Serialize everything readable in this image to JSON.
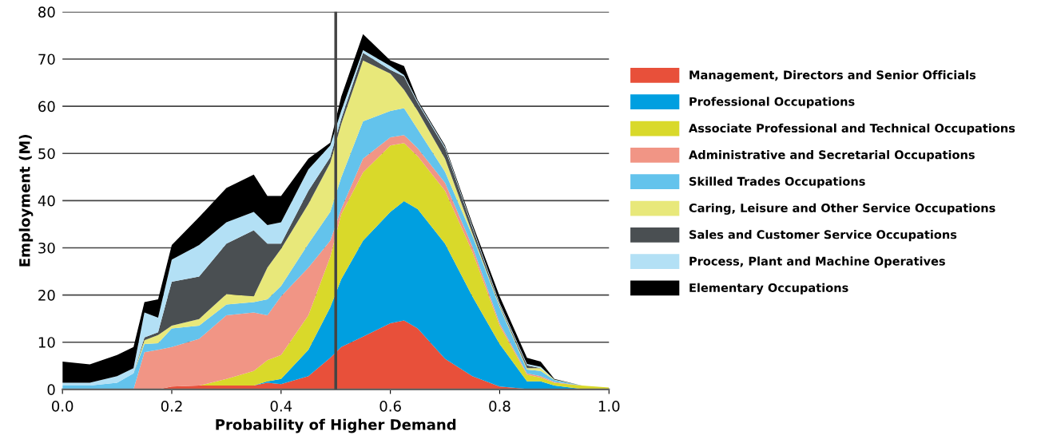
{
  "chart_data": {
    "type": "area",
    "stacked": true,
    "xlabel": "Probability of Higher Demand",
    "ylabel": "Employment (M)",
    "x": [
      0,
      0.05,
      0.1,
      0.13,
      0.15,
      0.175,
      0.2,
      0.25,
      0.3,
      0.35,
      0.375,
      0.4,
      0.45,
      0.49,
      0.51,
      0.55,
      0.6,
      0.625,
      0.65,
      0.7,
      0.75,
      0.8,
      0.85,
      0.875,
      0.9,
      0.95,
      1.0
    ],
    "series": [
      {
        "name": "Management, Directors and Senior Officials",
        "color": "#e8503a",
        "values": [
          0,
          0,
          0,
          0,
          0,
          0,
          0.6,
          0.8,
          0.8,
          0.8,
          1.4,
          1.1,
          2.8,
          6.7,
          9,
          11.2,
          14,
          14.6,
          12.9,
          6.5,
          2.8,
          0.6,
          0.1,
          0,
          0,
          0,
          0
        ]
      },
      {
        "name": "Professional Occupations",
        "color": "#009fe0",
        "values": [
          0,
          0,
          0,
          0,
          0,
          0,
          0,
          0,
          0,
          0,
          0.3,
          1.1,
          5.6,
          10.7,
          14.3,
          20.3,
          23.6,
          25.3,
          25.3,
          24.4,
          16.9,
          9,
          1.6,
          1.7,
          0.8,
          0.1,
          0
        ]
      },
      {
        "name": "Associate Professional and Technical Occupations",
        "color": "#d9d92a",
        "values": [
          0,
          0,
          0,
          0,
          0,
          0,
          0,
          0,
          1.4,
          3.1,
          4.5,
          5.1,
          7.3,
          10.7,
          13.8,
          14.5,
          14.1,
          12.3,
          11.2,
          11.2,
          9.5,
          3.9,
          1.4,
          0.8,
          0.6,
          0.7,
          0.4
        ]
      },
      {
        "name": "Administrative and Secretarial Occupations",
        "color": "#f19585",
        "values": [
          0,
          0,
          0,
          0,
          7.9,
          8.4,
          8.4,
          9.9,
          13.5,
          12.4,
          9.5,
          12.4,
          10.1,
          3.4,
          1.1,
          2.9,
          1.7,
          1.7,
          1.7,
          1.7,
          1.1,
          0.5,
          0.3,
          0.3,
          0.2,
          0,
          0
        ]
      },
      {
        "name": "Skilled Trades Occupations",
        "color": "#63c3ec",
        "values": [
          0.8,
          0.8,
          1.4,
          3.4,
          1.7,
          1.4,
          3.9,
          2.8,
          2.3,
          2.2,
          3.4,
          2.2,
          5.1,
          6.1,
          6.7,
          7.9,
          5.6,
          5.7,
          4,
          2.3,
          2.3,
          3.4,
          0.8,
          1.1,
          0.4,
          0,
          0
        ]
      },
      {
        "name": "Caring, Leisure and Other Service Occupations",
        "color": "#e8e87a",
        "values": [
          0,
          0,
          0,
          0,
          0.8,
          1.7,
          0.6,
          1.4,
          2.2,
          1.2,
          6.7,
          7.9,
          8.4,
          10.4,
          11.3,
          12.9,
          7.9,
          3.9,
          3.9,
          2.8,
          0.5,
          0.3,
          0.3,
          0.6,
          0.1,
          0,
          0
        ]
      },
      {
        "name": "Sales and Customer Service Occupations",
        "color": "#4a4f52",
        "values": [
          0,
          0,
          0,
          0,
          0.6,
          0.6,
          9.3,
          9,
          10.7,
          14,
          5.1,
          1.1,
          2.8,
          1.2,
          1.1,
          1.6,
          0.8,
          2.8,
          1.7,
          2.2,
          1.2,
          0.3,
          0.6,
          0,
          0,
          0,
          0
        ]
      },
      {
        "name": "Process, Plant and Machine Operatives",
        "color": "#b3e0f5",
        "values": [
          0.6,
          0.6,
          1.4,
          1.1,
          5.3,
          3.1,
          4.7,
          6.7,
          4.5,
          3.9,
          3.9,
          4.5,
          4.5,
          2.5,
          1.7,
          0.6,
          0.8,
          0.3,
          0.3,
          0.3,
          0.3,
          0.3,
          0.3,
          0.3,
          0,
          0,
          0
        ]
      },
      {
        "name": "Elementary Occupations",
        "color": "#000000",
        "values": [
          4.5,
          3.9,
          4.5,
          4.5,
          2.2,
          3.9,
          3.1,
          5.9,
          7.3,
          7.9,
          6.2,
          5.6,
          2.3,
          0.6,
          3,
          3.4,
          1.2,
          1.9,
          0.3,
          0.3,
          0.5,
          1.4,
          1.3,
          1.1,
          0.1,
          0,
          0
        ]
      }
    ],
    "xlim": [
      0,
      1.0
    ],
    "ylim": [
      0,
      80
    ],
    "xticks": [
      {
        "value": 0,
        "label": "0.0"
      },
      0.2,
      0.4,
      0.6,
      0.8,
      {
        "value": 1.0,
        "label": "1.0"
      }
    ],
    "yticks": [
      0,
      10,
      20,
      30,
      40,
      50,
      60,
      70,
      80
    ],
    "ref_lines": [
      {
        "axis": "x",
        "value": 0.5,
        "label": null,
        "color": "#444444"
      }
    ],
    "grid": "y",
    "legend": "right"
  }
}
